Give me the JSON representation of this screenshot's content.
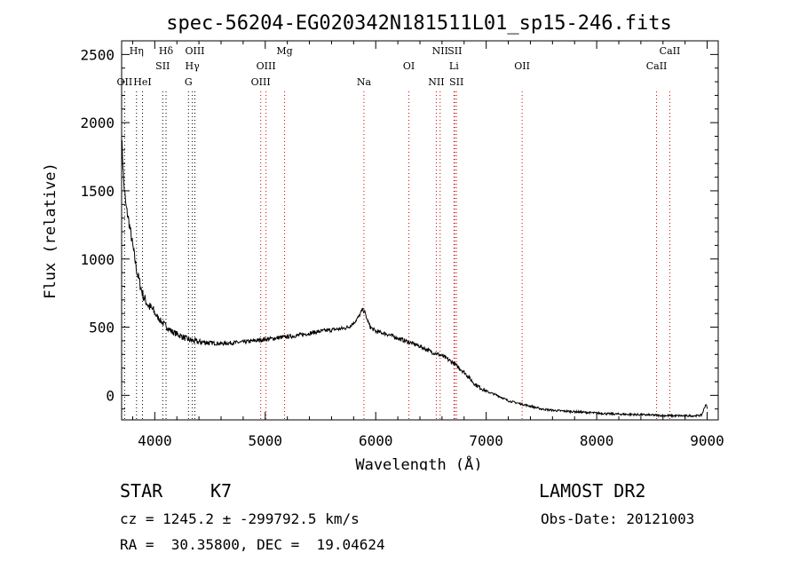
{
  "chart_data": {
    "type": "line",
    "title": "spec-56204-EG020342N181511L01_sp15-246.fits",
    "xlabel": "Wavelength (Å)",
    "ylabel": "Flux (relative)",
    "xlim": [
      3700,
      9100
    ],
    "ylim": [
      -180,
      2600
    ],
    "x_ticks": [
      4000,
      5000,
      6000,
      7000,
      8000,
      9000
    ],
    "y_ticks": [
      0,
      500,
      1000,
      1500,
      2000,
      2500
    ],
    "grid": false,
    "series": [
      {
        "x": [
          3700,
          3720,
          3740,
          3760,
          3780,
          3800,
          3820,
          3840,
          3860,
          3880,
          3900,
          3920,
          3950,
          3980,
          4000,
          4030,
          4060,
          4100,
          4150,
          4200,
          4250,
          4300,
          4350,
          4400,
          4450,
          4500,
          4600,
          4700,
          4800,
          4900,
          5000,
          5100,
          5200,
          5300,
          5400,
          5500,
          5600,
          5700,
          5750,
          5800,
          5850,
          5880,
          5900,
          5920,
          5950,
          6000,
          6100,
          6200,
          6300,
          6400,
          6500,
          6600,
          6700,
          6800,
          6900,
          7000,
          7100,
          7200,
          7300,
          7400,
          7500,
          7600,
          7700,
          7800,
          7900,
          8000,
          8100,
          8200,
          8300,
          8400,
          8500,
          8600,
          8700,
          8800,
          8900,
          8950,
          8990,
          9000
        ],
        "y": [
          1900,
          1550,
          1380,
          1300,
          1200,
          1100,
          1000,
          900,
          840,
          770,
          720,
          690,
          650,
          630,
          600,
          570,
          540,
          510,
          470,
          450,
          430,
          410,
          400,
          390,
          390,
          385,
          380,
          385,
          390,
          400,
          410,
          420,
          430,
          440,
          455,
          470,
          480,
          490,
          500,
          530,
          580,
          630,
          610,
          560,
          500,
          470,
          450,
          420,
          390,
          360,
          320,
          290,
          240,
          170,
          80,
          30,
          0,
          -40,
          -60,
          -80,
          -100,
          -110,
          -115,
          -120,
          -125,
          -130,
          -135,
          -138,
          -140,
          -142,
          -145,
          -148,
          -150,
          -150,
          -150,
          -145,
          -60,
          -100
        ]
      }
    ],
    "lines": [
      {
        "label": "Hη",
        "wl": 3835,
        "row": 0,
        "color": "#000000"
      },
      {
        "label": "OII",
        "wl": 3727,
        "row": 2,
        "color": "#000000"
      },
      {
        "label": "HeI",
        "wl": 3889,
        "row": 2,
        "color": "#000000"
      },
      {
        "label": "Hδ",
        "wl": 4102,
        "row": 0,
        "color": "#000000"
      },
      {
        "label": "SII",
        "wl": 4072,
        "row": 1,
        "color": "#000000"
      },
      {
        "label": "OIII",
        "wl": 4363,
        "row": 0,
        "color": "#000000"
      },
      {
        "label": "Hγ",
        "wl": 4340,
        "row": 1,
        "color": "#000000"
      },
      {
        "label": "G",
        "wl": 4305,
        "row": 2,
        "color": "#000000"
      },
      {
        "label": "Mg",
        "wl": 5175,
        "row": 0,
        "color": "#cc0000"
      },
      {
        "label": "OIII",
        "wl": 5007,
        "row": 1,
        "color": "#cc0000"
      },
      {
        "label": "OIII",
        "wl": 4959,
        "row": 2,
        "color": "#cc0000"
      },
      {
        "label": "Na",
        "wl": 5893,
        "row": 2,
        "color": "#cc0000"
      },
      {
        "label": "NII",
        "wl": 6583,
        "row": 0,
        "color": "#cc0000"
      },
      {
        "label": "SII",
        "wl": 6716,
        "row": 0,
        "color": "#cc0000"
      },
      {
        "label": "OI",
        "wl": 6300,
        "row": 1,
        "color": "#cc0000"
      },
      {
        "label": "Li",
        "wl": 6708,
        "row": 1,
        "color": "#cc0000"
      },
      {
        "label": "NII",
        "wl": 6548,
        "row": 2,
        "color": "#cc0000"
      },
      {
        "label": "SII",
        "wl": 6731,
        "row": 2,
        "color": "#cc0000"
      },
      {
        "label": "OII",
        "wl": 7325,
        "row": 1,
        "color": "#cc0000"
      },
      {
        "label": "CaII",
        "wl": 8662,
        "row": 0,
        "color": "#cc0000"
      },
      {
        "label": "CaII",
        "wl": 8542,
        "row": 1,
        "color": "#cc0000"
      }
    ]
  },
  "info": {
    "object_type": "STAR",
    "subclass": "K7",
    "cz_line": "cz = 1245.2 ± -299792.5 km/s",
    "coords_line": "RA =  30.35800, DEC =  19.04624",
    "survey": "LAMOST DR2",
    "obs_date_line": "Obs-Date: 20121003"
  }
}
